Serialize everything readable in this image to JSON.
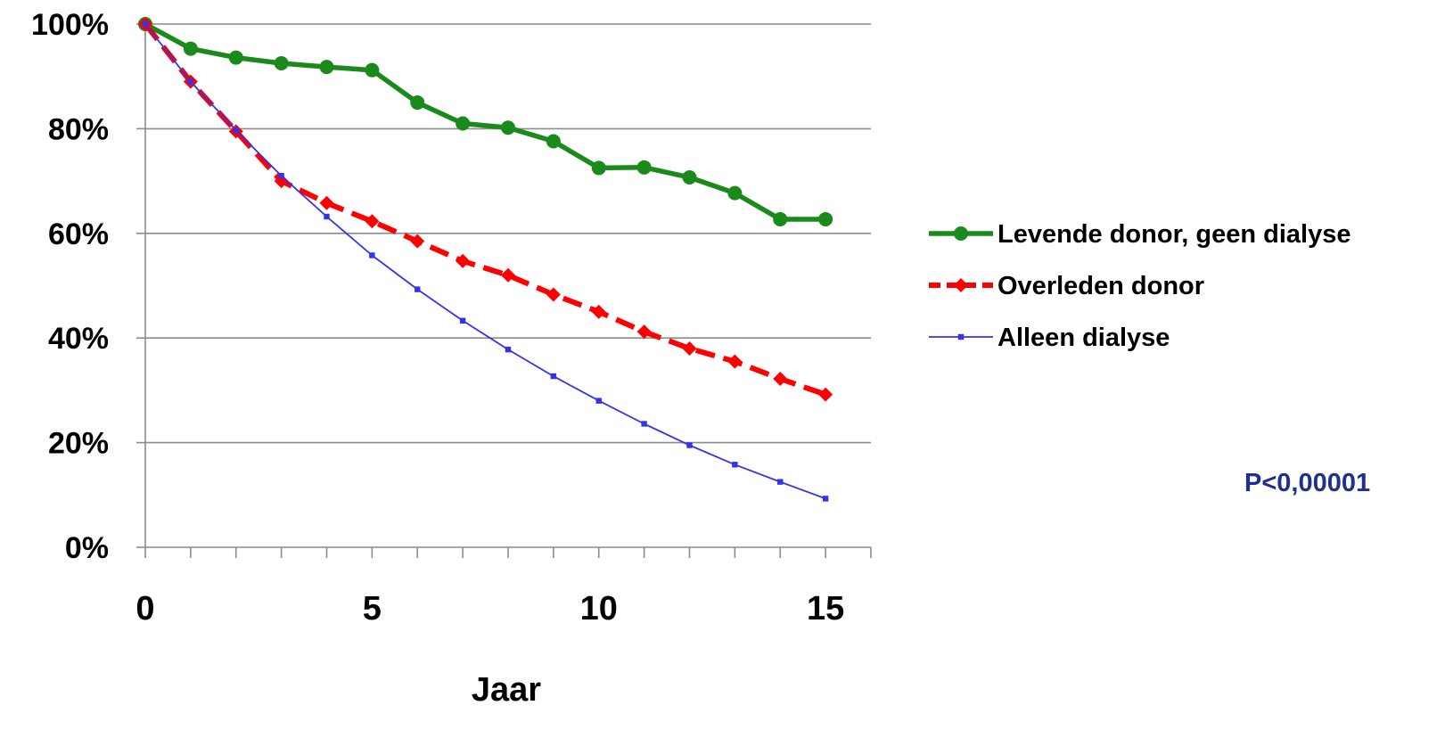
{
  "chart_data": {
    "type": "line",
    "title": "",
    "xlabel": "Jaar",
    "ylabel": "",
    "x": [
      0,
      1,
      2,
      3,
      4,
      5,
      6,
      7,
      8,
      9,
      10,
      11,
      12,
      13,
      14,
      15
    ],
    "xlim": [
      0,
      16
    ],
    "ylim": [
      0,
      100
    ],
    "x_ticks": [
      0,
      5,
      10,
      15
    ],
    "x_tick_labels": [
      "0",
      "5",
      "10",
      "15"
    ],
    "y_ticks": [
      0,
      20,
      40,
      60,
      80,
      100
    ],
    "y_tick_labels": [
      "0%",
      "20%",
      "40%",
      "60%",
      "80%",
      "100%"
    ],
    "grid": true,
    "legend_position": "right",
    "series": [
      {
        "name": "Levende donor, geen dialyse",
        "color": "#1a8a1a",
        "line_style": "solid",
        "marker": "circle",
        "values": [
          100,
          95.3,
          93.6,
          92.5,
          91.8,
          91.2,
          85.0,
          81.0,
          80.2,
          77.6,
          72.5,
          72.6,
          70.7,
          67.7,
          62.7,
          62.7
        ]
      },
      {
        "name": "Overleden donor",
        "color": "#ff0000",
        "line_style": "dashed",
        "marker": "diamond",
        "values": [
          100,
          89.0,
          79.5,
          70.0,
          65.8,
          62.3,
          58.5,
          54.7,
          52.0,
          48.3,
          45.0,
          41.2,
          38.0,
          35.5,
          32.2,
          29.2
        ]
      },
      {
        "name": "Alleen dialyse",
        "color": "#3333ee",
        "line_style": "solid",
        "marker": "square",
        "values": [
          100,
          89.0,
          79.7,
          71.0,
          63.2,
          55.8,
          49.3,
          43.3,
          37.8,
          32.7,
          28.0,
          23.6,
          19.5,
          15.8,
          12.5,
          9.3
        ]
      }
    ],
    "annotations": [
      {
        "text": "P<0,00001",
        "color": "#1f2f8f"
      }
    ]
  }
}
